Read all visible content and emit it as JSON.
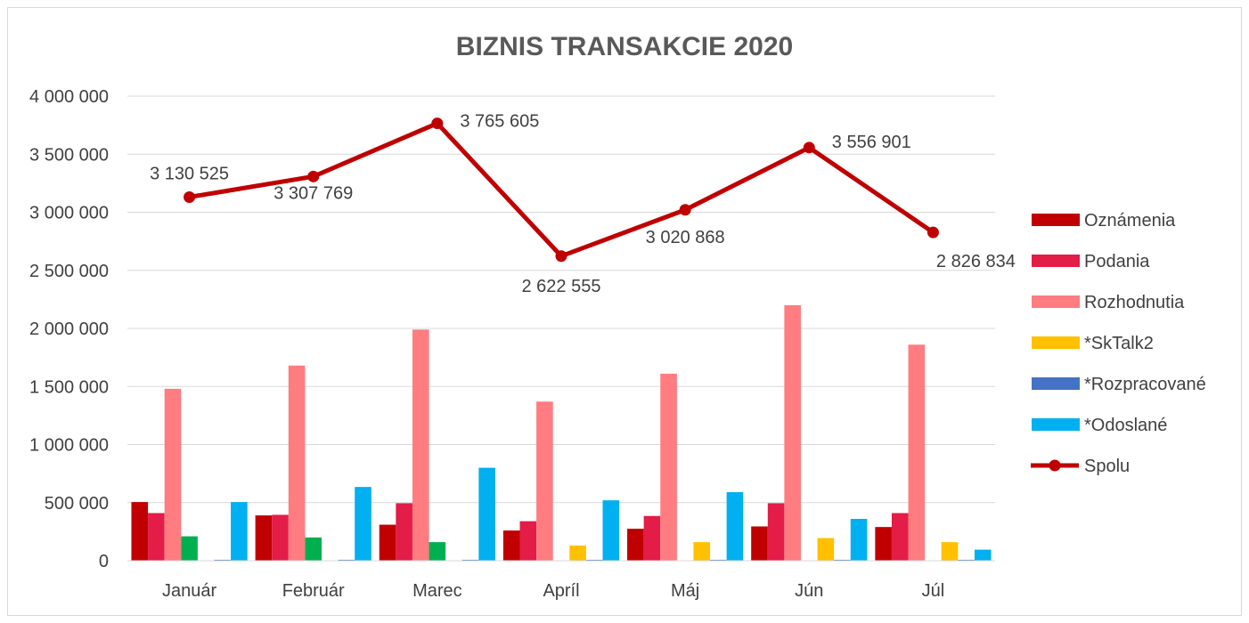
{
  "chart_data": {
    "type": "bar",
    "title": "BIZNIS TRANSAKCIE 2020",
    "xlabel": "",
    "ylabel": "",
    "ylim": [
      0,
      4000000
    ],
    "y_ticks": [
      0,
      500000,
      1000000,
      1500000,
      2000000,
      2500000,
      3000000,
      3500000,
      4000000
    ],
    "y_tick_labels": [
      "0",
      "500 000",
      "1 000 000",
      "1 500 000",
      "2 000 000",
      "2 500 000",
      "3 000 000",
      "3 500 000",
      "4 000 000"
    ],
    "grid": true,
    "legend_position": "right",
    "categories": [
      "Január",
      "Február",
      "Marec",
      "Apríl",
      "Máj",
      "Jún",
      "Júl"
    ],
    "series": [
      {
        "name": "Oznámenia",
        "type": "bar",
        "color": "#C00000",
        "values": [
          505000,
          390000,
          310000,
          260000,
          275000,
          295000,
          290000
        ],
        "in_legend": true
      },
      {
        "name": "Podania",
        "type": "bar",
        "color": "#E31C48",
        "values": [
          410000,
          395000,
          495000,
          340000,
          385000,
          495000,
          410000
        ],
        "in_legend": true
      },
      {
        "name": "Rozhodnutia",
        "type": "bar",
        "color": "#FF7C80",
        "values": [
          1480000,
          1680000,
          1990000,
          1370000,
          1610000,
          2200000,
          1860000
        ],
        "in_legend": true
      },
      {
        "name": "",
        "type": "bar",
        "color": "#00B050",
        "values": [
          210000,
          200000,
          160000,
          0,
          0,
          0,
          0
        ],
        "in_legend": false
      },
      {
        "name": "*SkTalk2",
        "type": "bar",
        "color": "#FFC000",
        "values": [
          0,
          0,
          0,
          130000,
          160000,
          195000,
          160000
        ],
        "in_legend": true
      },
      {
        "name": "*Rozpracované",
        "type": "bar",
        "color": "#4472C4",
        "values": [
          8000,
          8000,
          8000,
          8000,
          8000,
          8000,
          8000
        ],
        "in_legend": true
      },
      {
        "name": "*Odoslané",
        "type": "bar",
        "color": "#00B0F0",
        "values": [
          505000,
          635000,
          800000,
          520000,
          590000,
          360000,
          95000
        ],
        "in_legend": true
      },
      {
        "name": "Spolu",
        "type": "line",
        "color": "#C00000",
        "values": [
          3130525,
          3307769,
          3765605,
          2622555,
          3020868,
          3556901,
          2826834
        ],
        "in_legend": true
      }
    ],
    "data_labels": [
      "3 130 525",
      "3 307 769",
      "3 765 605",
      "2 622 555",
      "3 020 868",
      "3 556 901",
      "2 826 834"
    ]
  }
}
